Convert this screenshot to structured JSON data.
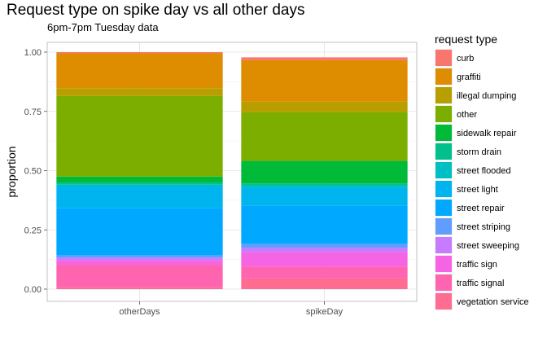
{
  "chart_data": {
    "type": "bar",
    "stacked": true,
    "title": "Request type on spike day vs all other days",
    "subtitle": "6pm-7pm Tuesday data",
    "xlabel": "",
    "ylabel": "proportion",
    "ylim": [
      0,
      1
    ],
    "yticks": [
      "0.00",
      "0.25",
      "0.50",
      "0.75",
      "1.00"
    ],
    "grid": true,
    "legend_title": "request type",
    "legend_position": "right",
    "categories": [
      "otherDays",
      "spikeDay"
    ],
    "series": [
      {
        "name": "curb",
        "color": "#F8766D",
        "values": [
          0.005,
          0.012
        ]
      },
      {
        "name": "graffiti",
        "color": "#DE8C00",
        "values": [
          0.147,
          0.175
        ]
      },
      {
        "name": "illegal dumping",
        "color": "#B79F00",
        "values": [
          0.033,
          0.045
        ]
      },
      {
        "name": "other",
        "color": "#7CAE00",
        "values": [
          0.34,
          0.205
        ]
      },
      {
        "name": "sidewalk repair",
        "color": "#00BA38",
        "values": [
          0.025,
          0.095
        ]
      },
      {
        "name": "storm drain",
        "color": "#00C08B",
        "values": [
          0.008,
          0.008
        ]
      },
      {
        "name": "street flooded",
        "color": "#00BFC4",
        "values": [
          0.009,
          0.01
        ]
      },
      {
        "name": "street light",
        "color": "#00B4F0",
        "values": [
          0.09,
          0.077
        ]
      },
      {
        "name": "street repair",
        "color": "#00A9FF",
        "values": [
          0.2,
          0.16
        ]
      },
      {
        "name": "street striping",
        "color": "#619CFF",
        "values": [
          0.01,
          0.016
        ]
      },
      {
        "name": "street sweeping",
        "color": "#C77CFF",
        "values": [
          0.01,
          0.02
        ]
      },
      {
        "name": "traffic sign",
        "color": "#F564E3",
        "values": [
          0.02,
          0.06
        ]
      },
      {
        "name": "traffic signal",
        "color": "#FF64B0",
        "values": [
          0.095,
          0.05
        ]
      },
      {
        "name": "vegetation service",
        "color": "#FF6C91",
        "values": [
          0.008,
          0.045
        ]
      }
    ]
  }
}
